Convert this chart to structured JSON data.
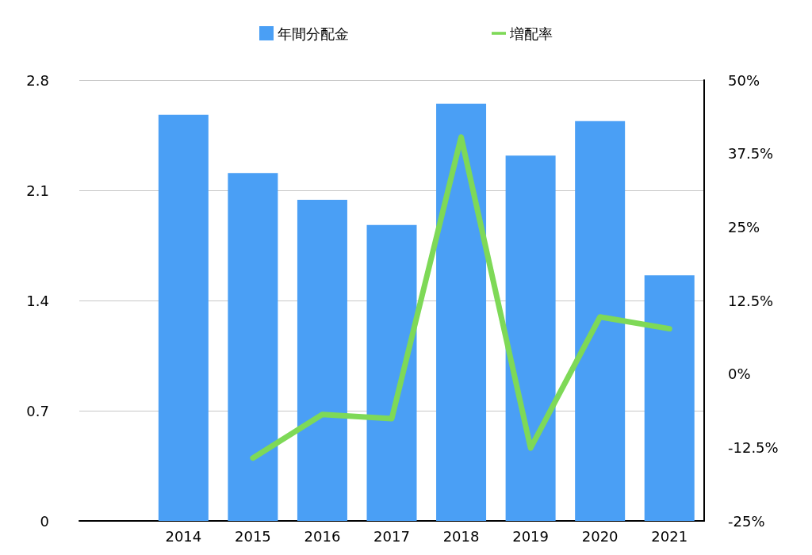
{
  "chart_data": {
    "type": "bar",
    "categories": [
      null,
      "2014",
      "2015",
      "2016",
      "2017",
      "2018",
      "2019",
      "2020",
      "2021"
    ],
    "series": [
      {
        "name": "年間分配金",
        "color": "#4a9ff5",
        "values": [
          null,
          2.58,
          2.21,
          2.04,
          1.88,
          2.65,
          2.32,
          2.54,
          1.56
        ]
      },
      {
        "name": "増配率",
        "type": "line",
        "axis": "y2",
        "color": "#7ed957",
        "marker": "none",
        "values": [
          null,
          null,
          -14.3,
          -6.9,
          -7.6,
          40.3,
          -12.6,
          9.7,
          7.7
        ]
      }
    ],
    "ylim": [
      0,
      2.8
    ],
    "yticks": [
      0,
      0.7,
      1.4,
      2.1,
      2.8
    ],
    "y2lim": [
      -25,
      50
    ],
    "y2ticks": [
      {
        "value": -25,
        "label": "-25%"
      },
      {
        "value": -12.5,
        "label": "-12.5%"
      },
      {
        "value": 0,
        "label": "0%"
      },
      {
        "value": 12.5,
        "label": "12.5%"
      },
      {
        "value": 25,
        "label": "25%"
      },
      {
        "value": 37.5,
        "label": "37.5%"
      },
      {
        "value": 50,
        "label": "50%"
      }
    ],
    "grid": "y",
    "legend": "top"
  }
}
